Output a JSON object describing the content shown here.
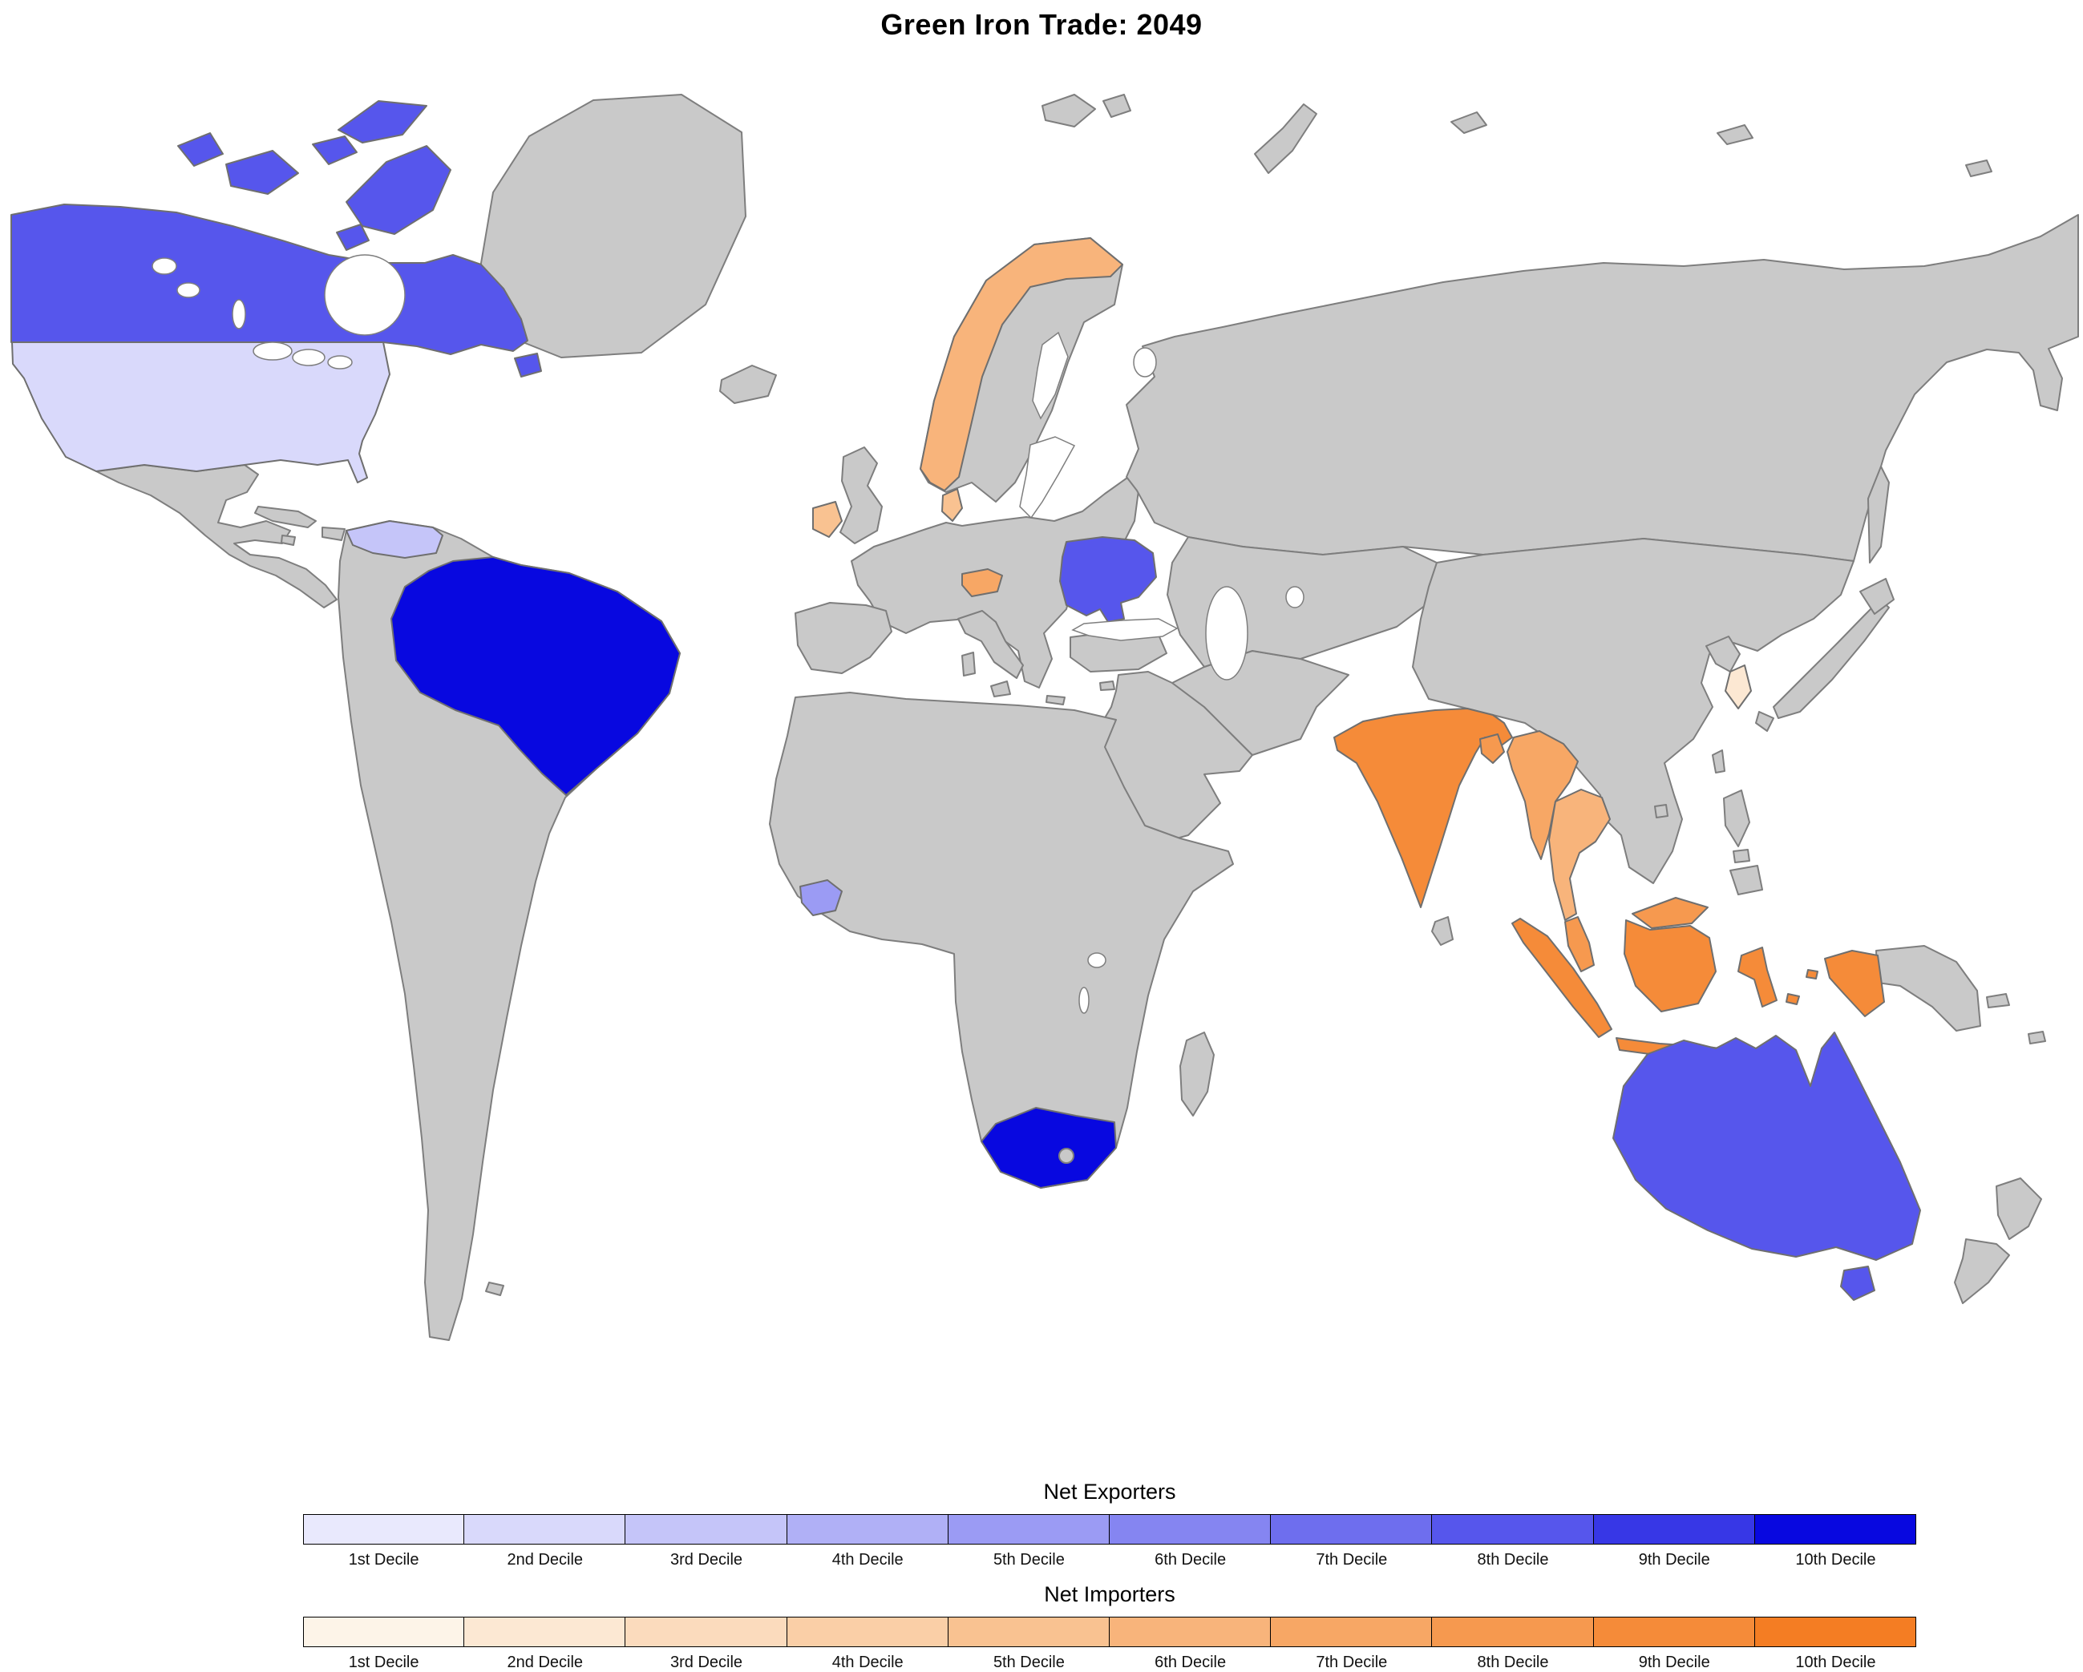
{
  "title": "Green Iron Trade: 2049",
  "map": {
    "ocean_color": "#ffffff",
    "no_data_color": "#c9c9c9",
    "border_color": "#7e7e7e"
  },
  "legends": {
    "exporters": {
      "title": "Net Exporters",
      "deciles": [
        {
          "label": "1st Decile",
          "color": "#e9e9fd"
        },
        {
          "label": "2nd Decile",
          "color": "#d9d9fb"
        },
        {
          "label": "3rd Decile",
          "color": "#c5c5f9"
        },
        {
          "label": "4th Decile",
          "color": "#b0b0f6"
        },
        {
          "label": "5th Decile",
          "color": "#9b9bf4"
        },
        {
          "label": "6th Decile",
          "color": "#8585f1"
        },
        {
          "label": "7th Decile",
          "color": "#6e6eee"
        },
        {
          "label": "8th Decile",
          "color": "#5656ec"
        },
        {
          "label": "9th Decile",
          "color": "#3737e6"
        },
        {
          "label": "10th Decile",
          "color": "#0808e0"
        }
      ]
    },
    "importers": {
      "title": "Net Importers",
      "deciles": [
        {
          "label": "1st Decile",
          "color": "#fdf4e8"
        },
        {
          "label": "2nd Decile",
          "color": "#fce8d3"
        },
        {
          "label": "3rd Decile",
          "color": "#fbdbbd"
        },
        {
          "label": "4th Decile",
          "color": "#facfa7"
        },
        {
          "label": "5th Decile",
          "color": "#f9c291"
        },
        {
          "label": "6th Decile",
          "color": "#f8b47b"
        },
        {
          "label": "7th Decile",
          "color": "#f7a765"
        },
        {
          "label": "8th Decile",
          "color": "#f6994f"
        },
        {
          "label": "9th Decile",
          "color": "#f58b39"
        },
        {
          "label": "10th Decile",
          "color": "#f47d23"
        }
      ]
    }
  },
  "regions": {
    "canada": {
      "group": "exporters",
      "decile": 8
    },
    "united_states": {
      "group": "exporters",
      "decile": 2
    },
    "venezuela": {
      "group": "exporters",
      "decile": 3
    },
    "brazil": {
      "group": "exporters",
      "decile": 10
    },
    "guinea": {
      "group": "exporters",
      "decile": 5
    },
    "south_africa": {
      "group": "exporters",
      "decile": 10
    },
    "ukraine": {
      "group": "exporters",
      "decile": 8
    },
    "australia": {
      "group": "exporters",
      "decile": 8
    },
    "norway": {
      "group": "importers",
      "decile": 6
    },
    "denmark": {
      "group": "importers",
      "decile": 5
    },
    "ireland": {
      "group": "importers",
      "decile": 5
    },
    "austria": {
      "group": "importers",
      "decile": 7
    },
    "south_korea": {
      "group": "importers",
      "decile": 2
    },
    "india": {
      "group": "importers",
      "decile": 9
    },
    "bangladesh": {
      "group": "importers",
      "decile": 8
    },
    "myanmar": {
      "group": "importers",
      "decile": 7
    },
    "thailand": {
      "group": "importers",
      "decile": 6
    },
    "malaysia": {
      "group": "importers",
      "decile": 8
    },
    "indonesia": {
      "group": "importers",
      "decile": 9
    }
  },
  "chart_data": {
    "type": "choropleth_map",
    "title": "Green Iron Trade: 2049",
    "value_units": "decile rank within group",
    "net_exporters": [
      {
        "country": "Brazil",
        "decile": 10
      },
      {
        "country": "South Africa",
        "decile": 10
      },
      {
        "country": "Canada",
        "decile": 8
      },
      {
        "country": "Australia",
        "decile": 8
      },
      {
        "country": "Ukraine",
        "decile": 8
      },
      {
        "country": "Guinea",
        "decile": 5
      },
      {
        "country": "Venezuela",
        "decile": 3
      },
      {
        "country": "United States",
        "decile": 2
      }
    ],
    "net_importers": [
      {
        "country": "India",
        "decile": 9
      },
      {
        "country": "Indonesia",
        "decile": 9
      },
      {
        "country": "Bangladesh",
        "decile": 8
      },
      {
        "country": "Malaysia",
        "decile": 8
      },
      {
        "country": "Myanmar",
        "decile": 7
      },
      {
        "country": "Austria",
        "decile": 7
      },
      {
        "country": "Norway",
        "decile": 6
      },
      {
        "country": "Thailand",
        "decile": 6
      },
      {
        "country": "Ireland",
        "decile": 5
      },
      {
        "country": "Denmark",
        "decile": 5
      },
      {
        "country": "South Korea",
        "decile": 2
      }
    ],
    "legend_position": "bottom",
    "no_data_fill": "#c9c9c9"
  }
}
